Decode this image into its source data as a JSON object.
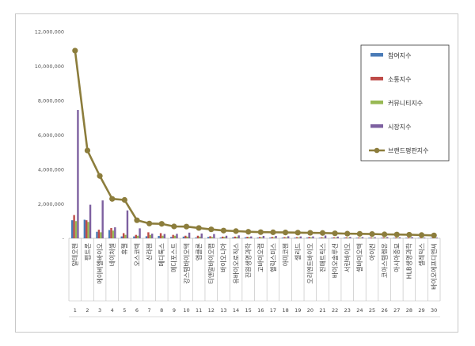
{
  "chart_data": {
    "type": "bar",
    "title": "",
    "xlabel": "",
    "ylabel": "",
    "ylim": [
      0,
      12000000
    ],
    "yticks": [
      "-",
      "2,000,000",
      "4,000,000",
      "6,000,000",
      "8,000,000",
      "10,000,000",
      "12,000,000"
    ],
    "ranks": [
      "1",
      "2",
      "3",
      "4",
      "5",
      "6",
      "7",
      "8",
      "9",
      "10",
      "11",
      "12",
      "13",
      "14",
      "15",
      "16",
      "17",
      "18",
      "19",
      "20",
      "21",
      "22",
      "23",
      "24",
      "25",
      "26",
      "27",
      "28",
      "29",
      "30"
    ],
    "categories": [
      "알테오젠",
      "펩트론",
      "에이비엘바이오",
      "네이처셀",
      "휴젤",
      "오스코텍",
      "신라젠",
      "메디톡스",
      "메디포스트",
      "강스템바이오텍",
      "앱클론",
      "티앤알바이오팹",
      "바이오니아",
      "유바이오로직스",
      "진원생명과학",
      "고바이오랩",
      "헬릭스미스",
      "아미코젠",
      "셀리드",
      "오리엔트바이오",
      "진매트릭스",
      "바이오솔루션",
      "서린바이오",
      "셀바이오텍",
      "아이진",
      "코아스템켐온",
      "아시아종묘",
      "HLB생명과학",
      "셀레믹스",
      "바이오에프디엔씨"
    ],
    "legend_position": "right",
    "series": [
      {
        "name": "참여지수",
        "type": "bar",
        "color": "#4a7bb7",
        "values": [
          1050000,
          1080000,
          380000,
          480000,
          110000,
          110000,
          120000,
          140000,
          80000,
          100000,
          50000,
          80000,
          50000,
          60000,
          60000,
          45000,
          45000,
          40000,
          40000,
          50000,
          35000,
          35000,
          40000,
          35000,
          35000,
          30000,
          30000,
          30000,
          25000,
          25000
        ]
      },
      {
        "name": "소통지수",
        "type": "bar",
        "color": "#be4b48",
        "values": [
          1350000,
          1050000,
          500000,
          600000,
          300000,
          200000,
          350000,
          300000,
          200000,
          150000,
          150000,
          120000,
          100000,
          100000,
          90000,
          80000,
          80000,
          70000,
          70000,
          80000,
          60000,
          60000,
          60000,
          50000,
          50000,
          50000,
          45000,
          40000,
          35000,
          35000
        ]
      },
      {
        "name": "커뮤니티지수",
        "type": "bar",
        "color": "#98b954",
        "values": [
          1000000,
          950000,
          350000,
          450000,
          200000,
          150000,
          200000,
          150000,
          150000,
          100000,
          100000,
          80000,
          80000,
          80000,
          70000,
          60000,
          60000,
          55000,
          55000,
          60000,
          45000,
          45000,
          45000,
          40000,
          40000,
          40000,
          35000,
          30000,
          30000,
          30000
        ]
      },
      {
        "name": "시장지수",
        "type": "bar",
        "color": "#7d60a0",
        "values": [
          7450000,
          1950000,
          2200000,
          640000,
          1620000,
          580000,
          270000,
          250000,
          260000,
          330000,
          280000,
          250000,
          150000,
          170000,
          110000,
          140000,
          140000,
          120000,
          110000,
          110000,
          160000,
          100000,
          80000,
          70000,
          60000,
          70000,
          60000,
          70000,
          40000,
          40000
        ]
      },
      {
        "name": "브랜드평판지수",
        "type": "line",
        "color": "#8c7d3c",
        "values": [
          10900000,
          5100000,
          3620000,
          2290000,
          2230000,
          1050000,
          860000,
          840000,
          690000,
          680000,
          600000,
          520000,
          450000,
          420000,
          380000,
          360000,
          350000,
          340000,
          330000,
          320000,
          310000,
          290000,
          270000,
          260000,
          250000,
          230000,
          220000,
          210000,
          190000,
          170000
        ]
      }
    ]
  }
}
